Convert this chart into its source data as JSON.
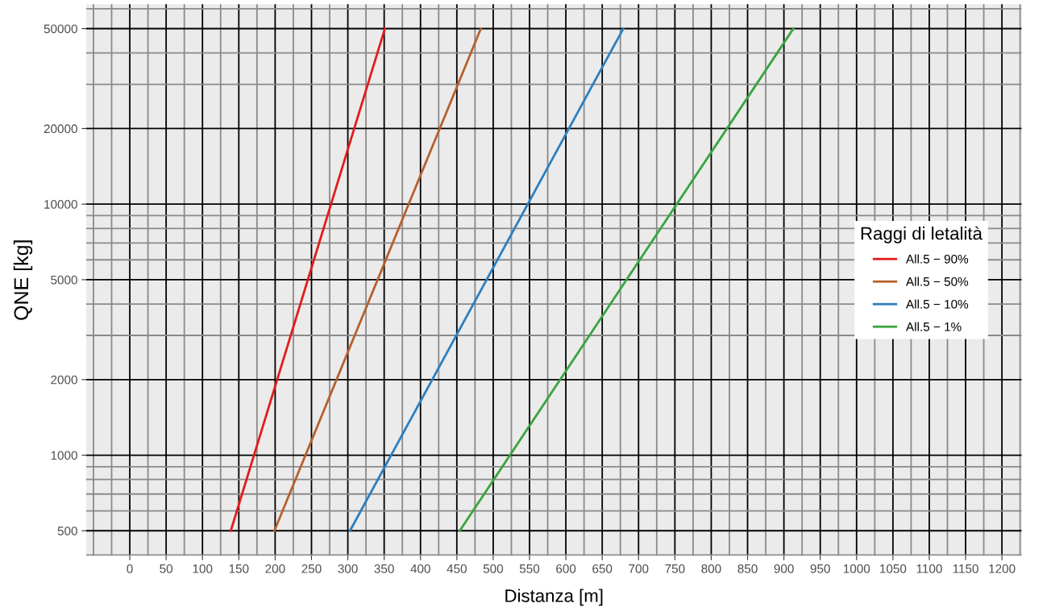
{
  "chart_data": {
    "type": "line",
    "xlabel": "Distanza [m]",
    "ylabel": "QNE [kg]",
    "legend_title": "Raggi di letalità",
    "legend": "right",
    "grid": true,
    "log": "y",
    "xlim": [
      -60,
      1227
    ],
    "ylim": [
      398,
      62500
    ],
    "xticks": [
      0,
      50,
      100,
      150,
      200,
      250,
      300,
      350,
      400,
      450,
      500,
      550,
      600,
      650,
      700,
      750,
      800,
      850,
      900,
      950,
      1000,
      1050,
      1100,
      1150,
      1200
    ],
    "yticks": [
      500,
      1000,
      2000,
      5000,
      10000,
      20000,
      50000
    ],
    "series": [
      {
        "name": "All.5 − 90%",
        "color": "#e41a1c",
        "x": [
          139,
          351
        ],
        "values": [
          500,
          50000
        ]
      },
      {
        "name": "All.5 − 50%",
        "color": "#b5602b",
        "x": [
          199,
          483
        ],
        "values": [
          500,
          50000
        ]
      },
      {
        "name": "All.5 − 10%",
        "color": "#2b7fc0",
        "x": [
          303,
          679
        ],
        "values": [
          500,
          50000
        ]
      },
      {
        "name": "All.5 − 1%",
        "color": "#3aa43a",
        "x": [
          454,
          913
        ],
        "values": [
          500,
          50000
        ]
      }
    ]
  }
}
